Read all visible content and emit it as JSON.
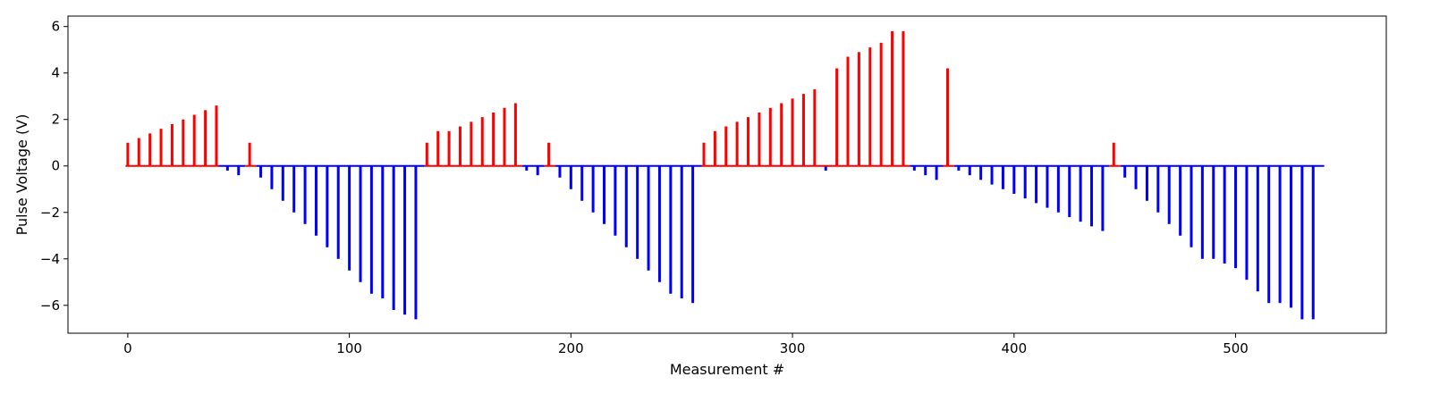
{
  "chart_data": {
    "type": "bar",
    "title": "",
    "xlabel": "Measurement #",
    "ylabel": "Pulse Voltage (V)",
    "xlim": [
      -27,
      568
    ],
    "ylim": [
      -7.2,
      6.45
    ],
    "xticks": [
      0,
      100,
      200,
      300,
      400,
      500
    ],
    "yticks": [
      -6,
      -4,
      -2,
      0,
      2,
      4,
      6
    ],
    "grid": false,
    "legend": "none",
    "colors": {
      "positive": "#ff0000",
      "negative": "#0000ff"
    },
    "baseline_segments": [
      {
        "x0": -1,
        "x1": 41,
        "color": "#ff0000"
      },
      {
        "x0": 41,
        "x1": 53,
        "color": "#0000ff"
      },
      {
        "x0": 53,
        "x1": 58,
        "color": "#ff0000"
      },
      {
        "x0": 58,
        "x1": 134,
        "color": "#0000ff"
      },
      {
        "x0": 134,
        "x1": 178,
        "color": "#ff0000"
      },
      {
        "x0": 178,
        "x1": 188,
        "color": "#0000ff"
      },
      {
        "x0": 188,
        "x1": 193,
        "color": "#ff0000"
      },
      {
        "x0": 193,
        "x1": 259,
        "color": "#0000ff"
      },
      {
        "x0": 259,
        "x1": 353,
        "color": "#ff0000"
      },
      {
        "x0": 353,
        "x1": 368,
        "color": "#0000ff"
      },
      {
        "x0": 368,
        "x1": 373,
        "color": "#ff0000"
      },
      {
        "x0": 373,
        "x1": 443,
        "color": "#0000ff"
      },
      {
        "x0": 443,
        "x1": 448,
        "color": "#ff0000"
      },
      {
        "x0": 448,
        "x1": 540,
        "color": "#0000ff"
      }
    ],
    "series": [
      {
        "x": [
          0,
          5,
          10,
          15,
          20,
          25,
          30,
          35,
          40,
          45,
          50,
          55,
          60,
          65,
          70,
          75,
          80,
          85,
          90,
          95,
          100,
          105,
          110,
          115,
          120,
          125,
          130,
          135,
          140,
          145,
          150,
          155,
          160,
          165,
          170,
          175,
          180,
          185,
          190,
          195,
          200,
          205,
          210,
          215,
          220,
          225,
          230,
          235,
          240,
          245,
          250,
          255,
          260,
          265,
          270,
          275,
          280,
          285,
          290,
          295,
          300,
          305,
          310,
          315,
          320,
          325,
          330,
          335,
          340,
          345,
          350,
          355,
          360,
          365,
          370,
          375,
          380,
          385,
          390,
          395,
          400,
          405,
          410,
          415,
          420,
          425,
          430,
          435,
          440,
          445,
          450,
          455,
          460,
          465,
          470,
          475,
          480,
          485,
          490,
          495,
          500,
          505,
          510,
          515,
          520,
          525,
          530,
          535
        ],
        "values": [
          1.0,
          1.2,
          1.4,
          1.6,
          1.8,
          2.0,
          2.2,
          2.4,
          2.6,
          -0.2,
          -0.4,
          1.0,
          -0.5,
          -1.0,
          -1.5,
          -2.0,
          -2.5,
          -3.0,
          -3.5,
          -4.0,
          -4.5,
          -5.0,
          -5.5,
          -5.7,
          -6.2,
          -6.4,
          -6.6,
          1.0,
          1.5,
          1.5,
          1.7,
          1.9,
          2.1,
          2.3,
          2.5,
          2.7,
          -0.2,
          -0.4,
          1.0,
          -0.5,
          -1.0,
          -1.5,
          -2.0,
          -2.5,
          -3.0,
          -3.5,
          -4.0,
          -4.5,
          -5.0,
          -5.5,
          -5.7,
          -5.9,
          1.0,
          1.5,
          1.7,
          1.9,
          2.1,
          2.3,
          2.5,
          2.7,
          2.9,
          3.1,
          3.3,
          -0.2,
          4.2,
          4.7,
          4.9,
          5.1,
          5.3,
          5.8,
          5.8,
          -0.2,
          -0.4,
          -0.6,
          4.2,
          -0.2,
          -0.4,
          -0.6,
          -0.8,
          -1.0,
          -1.2,
          -1.4,
          -1.6,
          -1.8,
          -2.0,
          -2.2,
          -2.4,
          -2.6,
          -2.8,
          1.0,
          -0.5,
          -1.0,
          -1.5,
          -2.0,
          -2.5,
          -3.0,
          -3.5,
          -4.0,
          -4.0,
          -4.2,
          -4.4,
          -4.9,
          -5.4,
          -5.9,
          -5.9,
          -6.1,
          -6.6,
          -6.6
        ]
      }
    ]
  }
}
